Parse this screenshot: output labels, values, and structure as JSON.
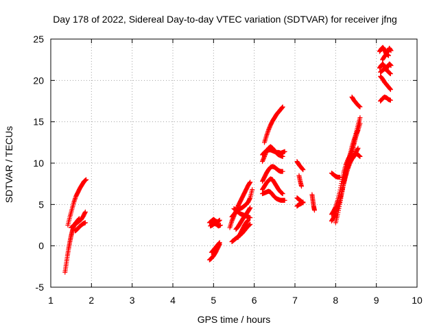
{
  "chart_data": {
    "type": "scatter",
    "title": "Day 178 of 2022, Sidereal Day-to-day VTEC variation (SDTVAR) for receiver jfng",
    "xlabel": "GPS time / hours",
    "ylabel": "SDTVAR / TECUs",
    "xlim": [
      1,
      10
    ],
    "ylim": [
      -5,
      25
    ],
    "xticks": [
      "1",
      "2",
      "3",
      "4",
      "5",
      "6",
      "7",
      "8",
      "9",
      "10"
    ],
    "yticks": [
      "-5",
      "0",
      "5",
      "10",
      "15",
      "20",
      "25"
    ],
    "grid": true,
    "marker": "+",
    "series_color": "#ff0000",
    "segments": [
      {
        "x": [
          1.35,
          1.38,
          1.41,
          1.44,
          1.47,
          1.5,
          1.53,
          1.56,
          1.6,
          1.65,
          1.7
        ],
        "y": [
          -3.2,
          -2.2,
          -1.2,
          -0.3,
          0.5,
          1.2,
          1.8,
          2.3,
          2.7,
          3.0,
          3.3
        ]
      },
      {
        "x": [
          1.42,
          1.47,
          1.52,
          1.57,
          1.62,
          1.67,
          1.72,
          1.77,
          1.82,
          1.87
        ],
        "y": [
          2.5,
          3.5,
          4.4,
          5.3,
          6.0,
          6.5,
          7.0,
          7.4,
          7.8,
          8.0
        ]
      },
      {
        "x": [
          1.5,
          1.55,
          1.6,
          1.65,
          1.7,
          1.75,
          1.8,
          1.85
        ],
        "y": [
          2.2,
          2.4,
          2.6,
          2.8,
          3.0,
          3.2,
          3.6,
          4.1
        ]
      },
      {
        "x": [
          1.6,
          1.65,
          1.7,
          1.75,
          1.8,
          1.85
        ],
        "y": [
          1.8,
          2.0,
          2.3,
          2.5,
          2.7,
          2.8
        ]
      },
      {
        "x": [
          4.9,
          4.95,
          5.0,
          5.05,
          5.1,
          5.15
        ],
        "y": [
          2.8,
          3.0,
          3.2,
          3.0,
          2.9,
          3.1
        ]
      },
      {
        "x": [
          4.92,
          4.97,
          5.02,
          5.07,
          5.12,
          5.17
        ],
        "y": [
          2.4,
          2.5,
          2.7,
          2.6,
          2.4,
          2.5
        ]
      },
      {
        "x": [
          4.9,
          4.95,
          5.0,
          5.05,
          5.1,
          5.15
        ],
        "y": [
          -1.7,
          -1.5,
          -1.2,
          -0.8,
          -0.3,
          0.2
        ]
      },
      {
        "x": [
          4.95,
          5.0,
          5.05,
          5.1,
          5.15
        ],
        "y": [
          -0.8,
          -0.5,
          -0.2,
          0.1,
          0.4
        ]
      },
      {
        "x": [
          5.45,
          5.5,
          5.55,
          5.6,
          5.65,
          5.7,
          5.75,
          5.8,
          5.85,
          5.9
        ],
        "y": [
          0.5,
          0.7,
          0.9,
          1.1,
          1.3,
          1.5,
          1.8,
          2.1,
          2.4,
          2.6
        ]
      },
      {
        "x": [
          5.4,
          5.45,
          5.5,
          5.55,
          5.6,
          5.65,
          5.7,
          5.75,
          5.8,
          5.85,
          5.9
        ],
        "y": [
          2.2,
          3.0,
          3.6,
          4.2,
          4.8,
          5.3,
          5.8,
          6.3,
          6.8,
          7.3,
          7.7
        ]
      },
      {
        "x": [
          5.45,
          5.5,
          5.55,
          5.6,
          5.65,
          5.7,
          5.75,
          5.8,
          5.85,
          5.9,
          5.95
        ],
        "y": [
          3.5,
          3.8,
          4.1,
          4.3,
          4.5,
          4.6,
          4.8,
          5.0,
          5.3,
          5.8,
          6.8
        ]
      },
      {
        "x": [
          5.5,
          5.55,
          5.6,
          5.65,
          5.7,
          5.75,
          5.8,
          5.85,
          5.9
        ],
        "y": [
          4.5,
          4.3,
          4.1,
          3.9,
          3.8,
          3.7,
          3.6,
          3.5,
          3.4
        ]
      },
      {
        "x": [
          5.55,
          5.6,
          5.65,
          5.7,
          5.75,
          5.8,
          5.85,
          5.9
        ],
        "y": [
          2.0,
          2.3,
          2.7,
          3.1,
          3.5,
          3.8,
          4.2,
          4.6
        ]
      },
      {
        "x": [
          5.6,
          5.65,
          5.7,
          5.75,
          5.8,
          5.85
        ],
        "y": [
          1.0,
          1.4,
          1.9,
          2.4,
          2.8,
          3.1
        ]
      },
      {
        "x": [
          6.25,
          6.3,
          6.35,
          6.4,
          6.45,
          6.5,
          6.55,
          6.6,
          6.65,
          6.7
        ],
        "y": [
          12.5,
          13.3,
          14.0,
          14.6,
          15.1,
          15.5,
          15.9,
          16.2,
          16.5,
          16.8
        ]
      },
      {
        "x": [
          6.2,
          6.25,
          6.3,
          6.35,
          6.4,
          6.45,
          6.5,
          6.55,
          6.6,
          6.65,
          6.7,
          6.75
        ],
        "y": [
          11.0,
          11.3,
          11.5,
          11.6,
          11.6,
          11.5,
          11.4,
          11.3,
          11.3,
          11.2,
          11.3,
          11.4
        ]
      },
      {
        "x": [
          6.2,
          6.25,
          6.3,
          6.35,
          6.4,
          6.45,
          6.5,
          6.55,
          6.6,
          6.65,
          6.7
        ],
        "y": [
          10.2,
          10.8,
          11.4,
          11.8,
          12.0,
          11.8,
          11.5,
          11.2,
          11.0,
          10.9,
          10.8
        ]
      },
      {
        "x": [
          6.2,
          6.25,
          6.3,
          6.35,
          6.4,
          6.45,
          6.5,
          6.55,
          6.6,
          6.65,
          6.7
        ],
        "y": [
          7.8,
          8.3,
          8.8,
          9.2,
          9.5,
          9.6,
          9.5,
          9.3,
          9.1,
          9.0,
          9.0
        ]
      },
      {
        "x": [
          6.2,
          6.25,
          6.3,
          6.35,
          6.4,
          6.45,
          6.5,
          6.55,
          6.6,
          6.65,
          6.7
        ],
        "y": [
          6.8,
          7.2,
          7.6,
          7.9,
          8.1,
          8.0,
          7.6,
          7.2,
          6.8,
          6.5,
          6.3
        ]
      },
      {
        "x": [
          6.2,
          6.25,
          6.3,
          6.35,
          6.4,
          6.45,
          6.5,
          6.55,
          6.6,
          6.65,
          6.7,
          6.75
        ],
        "y": [
          6.3,
          6.4,
          6.5,
          6.6,
          6.5,
          6.2,
          5.9,
          5.7,
          5.6,
          5.5,
          5.5,
          5.5
        ]
      },
      {
        "x": [
          7.05,
          7.1,
          7.15,
          7.2
        ],
        "y": [
          10.2,
          9.8,
          9.5,
          9.2
        ]
      },
      {
        "x": [
          7.1,
          7.13,
          7.16
        ],
        "y": [
          8.5,
          7.8,
          7.2
        ]
      },
      {
        "x": [
          7.05,
          7.1,
          7.15,
          7.2
        ],
        "y": [
          5.8,
          5.6,
          5.4,
          5.2
        ]
      },
      {
        "x": [
          7.05,
          7.1,
          7.15,
          7.2
        ],
        "y": [
          4.8,
          5.0,
          5.1,
          5.3
        ]
      },
      {
        "x": [
          7.42,
          7.44,
          7.46,
          7.48
        ],
        "y": [
          6.2,
          5.5,
          4.8,
          4.3
        ]
      },
      {
        "x": [
          7.9,
          7.95,
          8.0,
          8.05,
          8.1
        ],
        "y": [
          8.8,
          8.6,
          8.4,
          8.3,
          8.3
        ]
      },
      {
        "x": [
          7.9,
          7.95,
          8.0,
          8.05,
          8.1,
          8.15,
          8.2,
          8.25,
          8.3,
          8.35,
          8.4,
          8.45,
          8.5,
          8.55,
          8.6
        ],
        "y": [
          3.0,
          3.4,
          3.9,
          4.6,
          5.5,
          6.5,
          7.5,
          8.5,
          9.3,
          10.0,
          10.5,
          10.9,
          11.2,
          11.0,
          10.8
        ]
      },
      {
        "x": [
          7.9,
          7.95,
          8.0,
          8.05,
          8.1,
          8.15,
          8.2,
          8.25,
          8.3,
          8.35,
          8.4,
          8.45,
          8.5,
          8.55,
          8.6
        ],
        "y": [
          3.8,
          4.2,
          4.7,
          5.5,
          6.5,
          7.8,
          8.9,
          9.8,
          10.4,
          10.9,
          11.5,
          12.3,
          13.2,
          14.0,
          14.8
        ]
      },
      {
        "x": [
          8.0,
          8.05,
          8.1,
          8.15,
          8.2,
          8.25,
          8.3,
          8.35,
          8.4,
          8.45,
          8.5,
          8.55,
          8.6
        ],
        "y": [
          2.8,
          3.8,
          5.0,
          6.3,
          7.6,
          8.6,
          9.5,
          10.3,
          11.2,
          12.4,
          13.6,
          14.6,
          15.5
        ]
      },
      {
        "x": [
          8.1,
          8.15,
          8.2,
          8.25,
          8.3,
          8.35,
          8.4,
          8.45,
          8.5,
          8.55
        ],
        "y": [
          5.2,
          6.5,
          7.8,
          8.9,
          9.6,
          10.2,
          10.5,
          10.8,
          11.3,
          11.8
        ]
      },
      {
        "x": [
          8.2,
          8.25,
          8.3,
          8.35,
          8.4,
          8.45,
          8.5,
          8.55
        ],
        "y": [
          8.0,
          9.0,
          10.0,
          11.0,
          12.0,
          12.8,
          13.5,
          14.0
        ]
      },
      {
        "x": [
          8.4,
          8.45,
          8.5,
          8.55,
          8.6
        ],
        "y": [
          18.0,
          17.6,
          17.3,
          17.0,
          16.8
        ]
      },
      {
        "x": [
          9.1,
          9.15,
          9.2,
          9.25,
          9.3,
          9.35
        ],
        "y": [
          17.5,
          17.8,
          18.0,
          17.9,
          17.7,
          17.6
        ]
      },
      {
        "x": [
          9.1,
          9.15,
          9.2,
          9.25,
          9.3,
          9.35
        ],
        "y": [
          20.5,
          20.2,
          19.8,
          19.5,
          19.2,
          18.9
        ]
      },
      {
        "x": [
          9.08,
          9.12,
          9.16,
          9.2,
          9.24,
          9.28,
          9.32,
          9.36
        ],
        "y": [
          21.5,
          21.8,
          22.0,
          21.7,
          21.4,
          21.7,
          22.0,
          21.8
        ]
      },
      {
        "x": [
          9.1,
          9.15,
          9.2,
          9.25,
          9.3,
          9.35
        ],
        "y": [
          21.0,
          21.2,
          21.4,
          21.3,
          21.0,
          20.8
        ]
      },
      {
        "x": [
          9.08,
          9.12,
          9.16,
          9.2,
          9.24,
          9.28,
          9.32,
          9.36
        ],
        "y": [
          23.5,
          23.8,
          24.0,
          23.7,
          23.2,
          23.5,
          23.9,
          23.6
        ]
      },
      {
        "x": [
          9.15,
          9.2,
          9.25,
          9.3
        ],
        "y": [
          22.5,
          22.9,
          23.2,
          23.0
        ]
      }
    ]
  }
}
